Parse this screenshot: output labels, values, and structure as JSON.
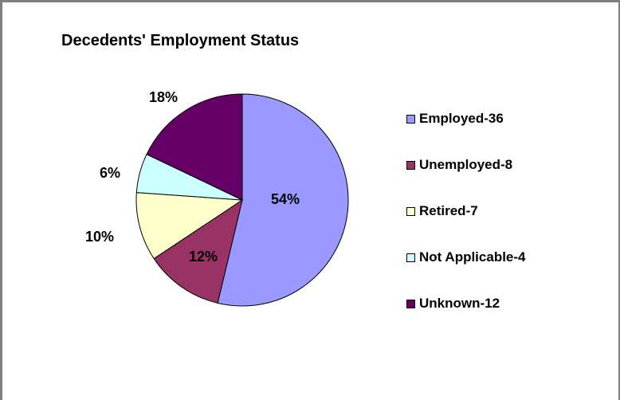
{
  "chart_data": {
    "type": "pie",
    "title": "Decedents' Employment Status",
    "slices": [
      {
        "label": "Employed-36",
        "value": 36,
        "pct_label": "54%",
        "color": "#9999ff"
      },
      {
        "label": "Unemployed-8",
        "value": 8,
        "pct_label": "12%",
        "color": "#993366"
      },
      {
        "label": "Retired-7",
        "value": 7,
        "pct_label": "10%",
        "color": "#ffffcc"
      },
      {
        "label": "Not Applicable-4",
        "value": 4,
        "pct_label": "6%",
        "color": "#ccffff"
      },
      {
        "label": "Unknown-12",
        "value": 12,
        "pct_label": "18%",
        "color": "#660066"
      }
    ],
    "legend_position": "right"
  }
}
